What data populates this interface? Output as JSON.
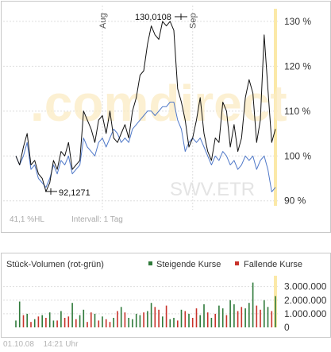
{
  "watermark": ".comdirect",
  "colors": {
    "black_line": "#111111",
    "blue_line": "#4f78c8",
    "rising": "#2f7a3a",
    "falling": "#c8322a",
    "grid": "#dedede",
    "highlight": "#fbe9a8"
  },
  "price_chart": {
    "symbol_label": "SWV.ETR",
    "info_left": "41,1 %HL",
    "info_interval": "Intervall: 1 Tag",
    "month_labels": [
      "Aug",
      "Sep"
    ],
    "annotation_high": "130,0108",
    "annotation_low": "92,1271"
  },
  "volume_chart": {
    "title": "Stück-Volumen (rot-grün)",
    "legend_rising": "Steigende Kurse",
    "legend_falling": "Fallende Kurse"
  },
  "footer": {
    "date": "01.10.08",
    "time": "14:21 Uhr"
  },
  "chart_data": [
    {
      "type": "line",
      "title": "",
      "y_axis_side": "right",
      "ylim": [
        88,
        133
      ],
      "yticks": [
        90,
        100,
        110,
        120,
        130
      ],
      "ytick_labels": [
        "90 %",
        "100 %",
        "110 %",
        "120 %",
        "130 %"
      ],
      "x": [
        1,
        2,
        3,
        4,
        5,
        6,
        7,
        8,
        9,
        10,
        11,
        12,
        13,
        14,
        15,
        16,
        17,
        18,
        19,
        20,
        21,
        22,
        23,
        24,
        25,
        26,
        27,
        28,
        29,
        30,
        31,
        32,
        33,
        34,
        35,
        36,
        37,
        38,
        39,
        40,
        41,
        42,
        43,
        44,
        45,
        46,
        47,
        48,
        49,
        50,
        51,
        52,
        53,
        54,
        55,
        56,
        57,
        58,
        59,
        60,
        61,
        62,
        63,
        64,
        65,
        66,
        67,
        68,
        69,
        70
      ],
      "series": [
        {
          "values": [
            100,
            98,
            102,
            105,
            98,
            99,
            96,
            95,
            92.1,
            94,
            99,
            97,
            101,
            100,
            103,
            97,
            98,
            99,
            110,
            108,
            106,
            103,
            108,
            109,
            105,
            110,
            104,
            103,
            105,
            107,
            104,
            110,
            113,
            118,
            119,
            125,
            129,
            127,
            126,
            130,
            129,
            130,
            128,
            115,
            112,
            108,
            102,
            104,
            108,
            113,
            105,
            101,
            99,
            104,
            103,
            112,
            110,
            102,
            107,
            101,
            104,
            113,
            117,
            114,
            103,
            108,
            127,
            115,
            103,
            106
          ]
        },
        {
          "values": [
            100,
            98,
            100,
            103,
            97,
            98,
            95,
            94,
            93,
            95,
            98,
            96,
            99,
            98,
            100,
            96,
            97,
            98,
            104,
            102,
            101,
            100,
            103,
            104,
            102,
            104,
            106,
            105,
            103,
            104,
            103,
            106,
            107,
            108,
            109,
            110,
            110,
            109,
            110,
            111,
            111,
            112,
            112,
            108,
            106,
            101,
            103,
            104,
            103,
            104,
            102,
            100,
            98,
            100,
            99,
            101,
            100,
            98,
            99,
            97,
            98,
            100,
            99,
            100,
            97,
            99,
            100,
            97,
            92,
            93
          ]
        }
      ]
    },
    {
      "type": "bar",
      "title": "Stück-Volumen (rot-grün)",
      "y_axis_side": "right",
      "ylim": [
        0,
        3800000
      ],
      "yticks": [
        0,
        1000000,
        2000000,
        3000000
      ],
      "ytick_labels": [
        "0",
        "1.000.000",
        "2.000.000",
        "3.000.000"
      ],
      "x": [
        1,
        2,
        3,
        4,
        5,
        6,
        7,
        8,
        9,
        10,
        11,
        12,
        13,
        14,
        15,
        16,
        17,
        18,
        19,
        20,
        21,
        22,
        23,
        24,
        25,
        26,
        27,
        28,
        29,
        30,
        31,
        32,
        33,
        34,
        35,
        36,
        37,
        38,
        39,
        40,
        41,
        42,
        43,
        44,
        45,
        46,
        47,
        48,
        49,
        50,
        51,
        52,
        53,
        54,
        55,
        56,
        57,
        58,
        59,
        60,
        61,
        62,
        63,
        64,
        65,
        66,
        67,
        68,
        69,
        70
      ],
      "values": [
        500000,
        1900000,
        900000,
        1000000,
        400000,
        600000,
        800000,
        900000,
        700000,
        1100000,
        500000,
        500000,
        1200000,
        700000,
        800000,
        1800000,
        600000,
        900000,
        1300000,
        400000,
        1100000,
        1000000,
        500000,
        800000,
        600000,
        400000,
        700000,
        1200000,
        1500000,
        1100000,
        700000,
        600000,
        1000000,
        900000,
        1100000,
        1200000,
        1800000,
        1500000,
        1300000,
        800000,
        1600000,
        600000,
        700000,
        500000,
        1300000,
        1200000,
        1000000,
        700000,
        1400000,
        900000,
        1700000,
        1100000,
        700000,
        1000000,
        1600000,
        1400000,
        900000,
        2000000,
        1700000,
        1200000,
        1500000,
        1400000,
        1800000,
        3300000,
        1600000,
        1300000,
        2000000,
        1500000,
        1200000,
        2300000
      ],
      "direction": [
        "u",
        "u",
        "d",
        "u",
        "d",
        "u",
        "d",
        "u",
        "d",
        "u",
        "u",
        "d",
        "u",
        "d",
        "d",
        "u",
        "d",
        "u",
        "u",
        "d",
        "d",
        "u",
        "d",
        "u",
        "d",
        "d",
        "u",
        "d",
        "u",
        "d",
        "u",
        "u",
        "u",
        "u",
        "d",
        "u",
        "u",
        "d",
        "d",
        "u",
        "d",
        "u",
        "u",
        "d",
        "u",
        "d",
        "u",
        "d",
        "d",
        "u",
        "u",
        "d",
        "u",
        "d",
        "u",
        "u",
        "d",
        "u",
        "u",
        "d",
        "d",
        "u",
        "u",
        "u",
        "d",
        "d",
        "u",
        "u",
        "d",
        "u"
      ]
    }
  ]
}
